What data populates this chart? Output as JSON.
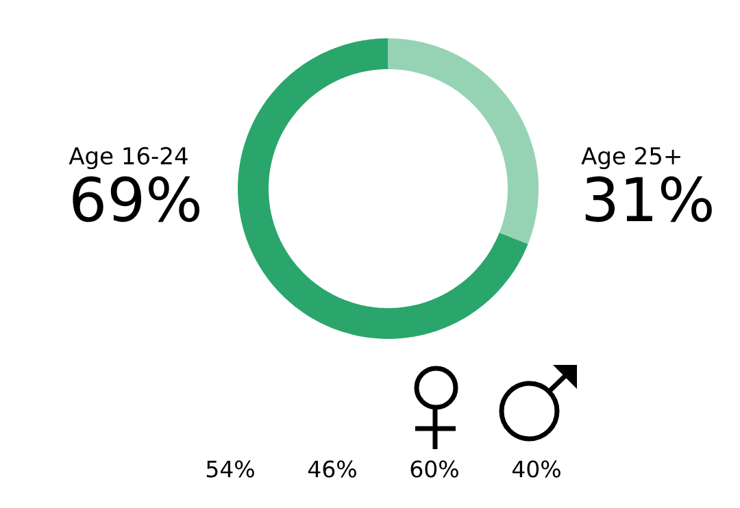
{
  "chart_data": [
    {
      "type": "donut",
      "categories": [
        "Age 16-24",
        "Age 25+"
      ],
      "values": [
        69,
        31
      ],
      "colors": [
        "#2aa66c",
        "#96d3b5"
      ],
      "value_labels": [
        "69%",
        "31%"
      ]
    },
    {
      "type": "other",
      "annotations": [
        "54%",
        "46%",
        "60%",
        "40%"
      ]
    }
  ]
}
